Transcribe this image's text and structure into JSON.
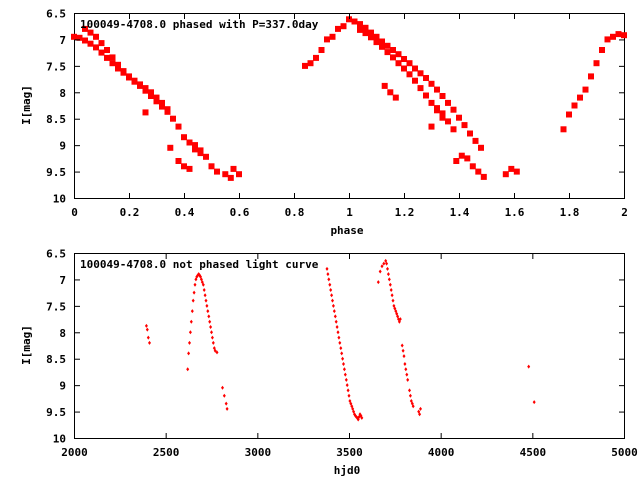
{
  "chart_data": [
    {
      "type": "scatter",
      "title": "100049-4708.0 phased with P=337.0day",
      "xlabel": "phase",
      "ylabel": "I[mag]",
      "xlim": [
        0,
        2
      ],
      "ylim": [
        10,
        6.5
      ],
      "y_reversed": true,
      "grid": false,
      "x_ticks": [
        {
          "value": 0,
          "label": "0"
        },
        {
          "value": 0.2,
          "label": "0.2"
        },
        {
          "value": 0.4,
          "label": "0.4"
        },
        {
          "value": 0.6,
          "label": "0.6"
        },
        {
          "value": 0.8,
          "label": "0.8"
        },
        {
          "value": 1,
          "label": "1"
        },
        {
          "value": 1.2,
          "label": "1.2"
        },
        {
          "value": 1.4,
          "label": "1.4"
        },
        {
          "value": 1.6,
          "label": "1.6"
        },
        {
          "value": 1.8,
          "label": "1.8"
        },
        {
          "value": 2,
          "label": "2"
        }
      ],
      "y_ticks": [
        {
          "value": 6.5,
          "label": "6.5"
        },
        {
          "value": 7,
          "label": "7"
        },
        {
          "value": 7.5,
          "label": "7.5"
        },
        {
          "value": 8,
          "label": "8"
        },
        {
          "value": 8.5,
          "label": "8.5"
        },
        {
          "value": 9,
          "label": "9"
        },
        {
          "value": 9.5,
          "label": "9.5"
        },
        {
          "value": 10,
          "label": "10"
        }
      ],
      "marker_color": "#ff0000",
      "series": [
        {
          "x": [
            0.0,
            0.02,
            0.04,
            0.06,
            0.08,
            0.1,
            0.12,
            0.14,
            0.16,
            0.18,
            0.2,
            0.22,
            0.24,
            0.26,
            0.28,
            0.3,
            0.32,
            0.34,
            0.36,
            0.38,
            0.4,
            0.42,
            0.44,
            0.46,
            0.48,
            1.0,
            1.02,
            1.04,
            1.06,
            1.08,
            1.1,
            1.12,
            1.14,
            1.16,
            1.18,
            1.2,
            1.22,
            1.24,
            1.26,
            1.28,
            1.3,
            1.32,
            1.34,
            1.36,
            1.38,
            1.4,
            1.42,
            1.44,
            1.46,
            1.48,
            0.04,
            0.06,
            0.08,
            0.1,
            0.12,
            0.14,
            0.16,
            0.18,
            0.2,
            0.22,
            0.24,
            0.26,
            0.28,
            0.3,
            0.32,
            0.34,
            1.04,
            1.06,
            1.08,
            1.1,
            1.12,
            1.14,
            1.16,
            1.18,
            1.2,
            1.22,
            1.24,
            1.26,
            1.28,
            1.3,
            1.32,
            1.34,
            0.84,
            0.86,
            0.88,
            0.9,
            0.92,
            0.94,
            0.96,
            0.98,
            1.78,
            1.8,
            1.82,
            1.84,
            1.86,
            1.88,
            1.9,
            1.92,
            1.94,
            1.96,
            1.98,
            2.0,
            0.26,
            0.35,
            0.38,
            0.4,
            0.42,
            0.44,
            0.46,
            0.5,
            0.52,
            0.55,
            0.57,
            0.58,
            0.6,
            1.13,
            1.15,
            1.17,
            1.3,
            1.32,
            1.34,
            1.36,
            1.38,
            1.39,
            1.41,
            1.43,
            1.45,
            1.47,
            1.49,
            1.57,
            1.59,
            1.61
          ],
          "y": [
            6.95,
            6.97,
            7.02,
            7.08,
            7.15,
            7.25,
            7.35,
            7.45,
            7.55,
            7.63,
            7.72,
            7.8,
            7.88,
            7.97,
            8.07,
            8.17,
            8.27,
            8.37,
            8.5,
            8.65,
            8.85,
            8.95,
            9.08,
            9.15,
            9.22,
            6.62,
            6.66,
            6.71,
            6.78,
            6.87,
            6.95,
            7.04,
            7.12,
            7.2,
            7.28,
            7.37,
            7.45,
            7.55,
            7.64,
            7.73,
            7.84,
            7.95,
            8.07,
            8.2,
            8.33,
            8.48,
            8.62,
            8.78,
            8.92,
            9.05,
            6.8,
            6.87,
            6.95,
            7.07,
            7.2,
            7.34,
            7.48,
            7.6,
            7.7,
            7.78,
            7.85,
            7.92,
            8.0,
            8.1,
            8.2,
            8.32,
            6.82,
            6.88,
            6.96,
            7.05,
            7.14,
            7.24,
            7.34,
            7.45,
            7.55,
            7.66,
            7.78,
            7.92,
            8.06,
            8.2,
            8.34,
            8.48,
            7.5,
            7.45,
            7.35,
            7.2,
            7.0,
            6.95,
            6.8,
            6.75,
            8.7,
            8.42,
            8.25,
            8.1,
            7.95,
            7.7,
            7.45,
            7.2,
            7.0,
            6.95,
            6.9,
            6.92,
            8.38,
            9.05,
            9.3,
            9.4,
            9.45,
            9.0,
            9.1,
            9.4,
            9.5,
            9.55,
            9.62,
            9.45,
            9.55,
            7.88,
            8.0,
            8.1,
            8.65,
            8.3,
            8.4,
            8.55,
            8.7,
            9.3,
            9.2,
            9.25,
            9.4,
            9.5,
            9.6,
            9.55,
            9.45,
            9.5
          ]
        }
      ]
    },
    {
      "type": "scatter",
      "title": "100049-4708.0 not phased light curve",
      "xlabel": "hjd0",
      "ylabel": "I[mag]",
      "xlim": [
        2000,
        5000
      ],
      "ylim": [
        10,
        6.5
      ],
      "y_reversed": true,
      "grid": false,
      "x_ticks": [
        {
          "value": 2000,
          "label": "2000"
        },
        {
          "value": 2500,
          "label": "2500"
        },
        {
          "value": 3000,
          "label": "3000"
        },
        {
          "value": 3500,
          "label": "3500"
        },
        {
          "value": 4000,
          "label": "4000"
        },
        {
          "value": 4500,
          "label": "4500"
        },
        {
          "value": 5000,
          "label": "5000"
        }
      ],
      "y_ticks": [
        {
          "value": 6.5,
          "label": "6.5"
        },
        {
          "value": 7,
          "label": "7"
        },
        {
          "value": 7.5,
          "label": "7.5"
        },
        {
          "value": 8,
          "label": "8"
        },
        {
          "value": 8.5,
          "label": "8.5"
        },
        {
          "value": 9,
          "label": "9"
        },
        {
          "value": 9.5,
          "label": "9.5"
        },
        {
          "value": 10,
          "label": "10"
        }
      ],
      "marker_color": "#ff0000",
      "series": [
        {
          "x": [
            2395,
            2400,
            2405,
            2412,
            2620,
            2625,
            2630,
            2635,
            2640,
            2645,
            2650,
            2655,
            2660,
            2665,
            2670,
            2675,
            2680,
            2685,
            2690,
            2695,
            2700,
            2705,
            2710,
            2715,
            2720,
            2725,
            2730,
            2735,
            2740,
            2745,
            2750,
            2755,
            2760,
            2765,
            2770,
            2780,
            2810,
            2820,
            2830,
            2835,
            3380,
            3385,
            3390,
            3395,
            3400,
            3405,
            3410,
            3415,
            3420,
            3425,
            3430,
            3435,
            3440,
            3445,
            3450,
            3455,
            3460,
            3465,
            3470,
            3475,
            3480,
            3485,
            3490,
            3495,
            3500,
            3505,
            3510,
            3515,
            3520,
            3525,
            3530,
            3535,
            3540,
            3545,
            3550,
            3555,
            3560,
            3565,
            3570,
            3660,
            3670,
            3680,
            3690,
            3700,
            3705,
            3710,
            3715,
            3720,
            3725,
            3730,
            3735,
            3740,
            3745,
            3750,
            3755,
            3760,
            3765,
            3770,
            3775,
            3780,
            3790,
            3795,
            3800,
            3805,
            3810,
            3815,
            3820,
            3830,
            3835,
            3840,
            3845,
            3850,
            3880,
            3885,
            3890,
            4480,
            4510
          ],
          "y": [
            7.88,
            7.95,
            8.1,
            8.2,
            8.7,
            8.4,
            8.2,
            8.0,
            7.8,
            7.6,
            7.4,
            7.25,
            7.1,
            7.0,
            6.95,
            6.92,
            6.9,
            6.92,
            6.95,
            7.0,
            7.05,
            7.1,
            7.2,
            7.3,
            7.4,
            7.5,
            7.6,
            7.7,
            7.8,
            7.9,
            8.0,
            8.1,
            8.2,
            8.3,
            8.35,
            8.38,
            9.05,
            9.2,
            9.35,
            9.45,
            6.8,
            6.9,
            7.0,
            7.1,
            7.2,
            7.3,
            7.4,
            7.5,
            7.6,
            7.7,
            7.8,
            7.9,
            8.0,
            8.1,
            8.2,
            8.3,
            8.4,
            8.5,
            8.6,
            8.7,
            8.8,
            8.9,
            9.0,
            9.1,
            9.2,
            9.3,
            9.35,
            9.4,
            9.45,
            9.5,
            9.55,
            9.58,
            9.6,
            9.62,
            9.65,
            9.6,
            9.55,
            9.58,
            9.62,
            7.05,
            6.85,
            6.75,
            6.7,
            6.65,
            6.7,
            6.8,
            6.9,
            7.0,
            7.1,
            7.2,
            7.3,
            7.4,
            7.5,
            7.55,
            7.6,
            7.65,
            7.7,
            7.75,
            7.8,
            7.75,
            8.25,
            8.35,
            8.45,
            8.6,
            8.7,
            8.8,
            8.9,
            9.1,
            9.2,
            9.3,
            9.35,
            9.4,
            9.5,
            9.55,
            9.45,
            8.65,
            9.32
          ]
        }
      ]
    }
  ]
}
